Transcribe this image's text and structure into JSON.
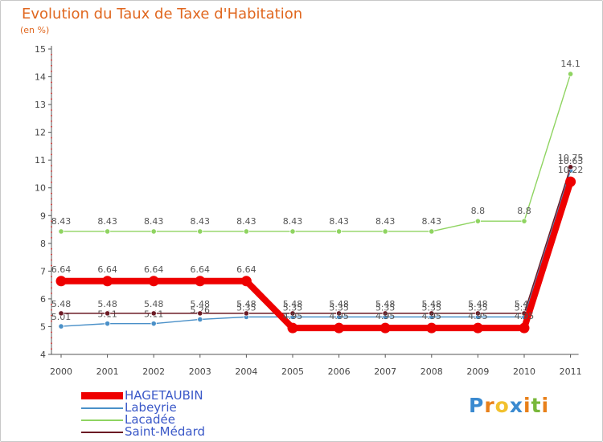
{
  "chart_data": {
    "type": "line",
    "title": "Evolution du Taux de Taxe d'Habitation",
    "unit_label": "(en %)",
    "xlabel": "",
    "ylabel": "",
    "ylim": [
      4,
      15
    ],
    "y_ticks": [
      "4",
      "5",
      "6",
      "7",
      "8",
      "9",
      "10",
      "11",
      "12",
      "13",
      "14",
      "15"
    ],
    "categories": [
      "2000",
      "2001",
      "2002",
      "2003",
      "2004",
      "2005",
      "2006",
      "2007",
      "2008",
      "2009",
      "2010",
      "2011"
    ],
    "series": [
      {
        "name": "Labeyrie",
        "color": "#4a90c8",
        "values": [
          5.01,
          5.11,
          5.11,
          5.26,
          5.35,
          5.35,
          5.35,
          5.35,
          5.35,
          5.35,
          5.35,
          10.63
        ],
        "labels": [
          "5.01",
          "5.11",
          "5.11",
          "5.26",
          "5.35",
          "5.35",
          "5.35",
          "5.35",
          "5.35",
          "5.35",
          "5.35",
          "10.63"
        ]
      },
      {
        "name": "Lacadée",
        "color": "#8fd461",
        "values": [
          8.43,
          8.43,
          8.43,
          8.43,
          8.43,
          8.43,
          8.43,
          8.43,
          8.43,
          8.8,
          8.8,
          14.1
        ],
        "labels": [
          "8.43",
          "8.43",
          "8.43",
          "8.43",
          "8.43",
          "8.43",
          "8.43",
          "8.43",
          "8.43",
          "8.8",
          "8.8",
          "14.1"
        ]
      },
      {
        "name": "Saint-Médard",
        "color": "#6b1a24",
        "values": [
          5.48,
          5.48,
          5.48,
          5.48,
          5.48,
          5.48,
          5.48,
          5.48,
          5.48,
          5.48,
          5.48,
          10.75
        ],
        "labels": [
          "5.48",
          "5.48",
          "5.48",
          "5.48",
          "5.48",
          "5.48",
          "5.48",
          "5.48",
          "5.48",
          "5.48",
          "5.48",
          "10.75"
        ]
      },
      {
        "name": "HAGETAUBIN",
        "color": "#ee0000",
        "values": [
          6.64,
          6.64,
          6.64,
          6.64,
          6.64,
          4.95,
          4.95,
          4.95,
          4.95,
          4.95,
          4.95,
          10.22
        ],
        "labels": [
          "6.64",
          "6.64",
          "6.64",
          "6.64",
          "6.64",
          "4.95",
          "4.95",
          "4.95",
          "4.95",
          "4.95",
          "4.95",
          "10.22"
        ]
      }
    ],
    "legend_order": [
      "HAGETAUBIN",
      "Labeyrie",
      "Lacadée",
      "Saint-Médard"
    ],
    "legend": "bottom-left",
    "grid": false
  },
  "logo": {
    "letters": [
      "P",
      "r",
      "o",
      "x",
      "i",
      "t",
      "i"
    ],
    "colors": [
      "#3a8ad0",
      "#e8801a",
      "#f2c12e",
      "#3a8ad0",
      "#e8801a",
      "#79b83a",
      "#e8801a"
    ]
  }
}
